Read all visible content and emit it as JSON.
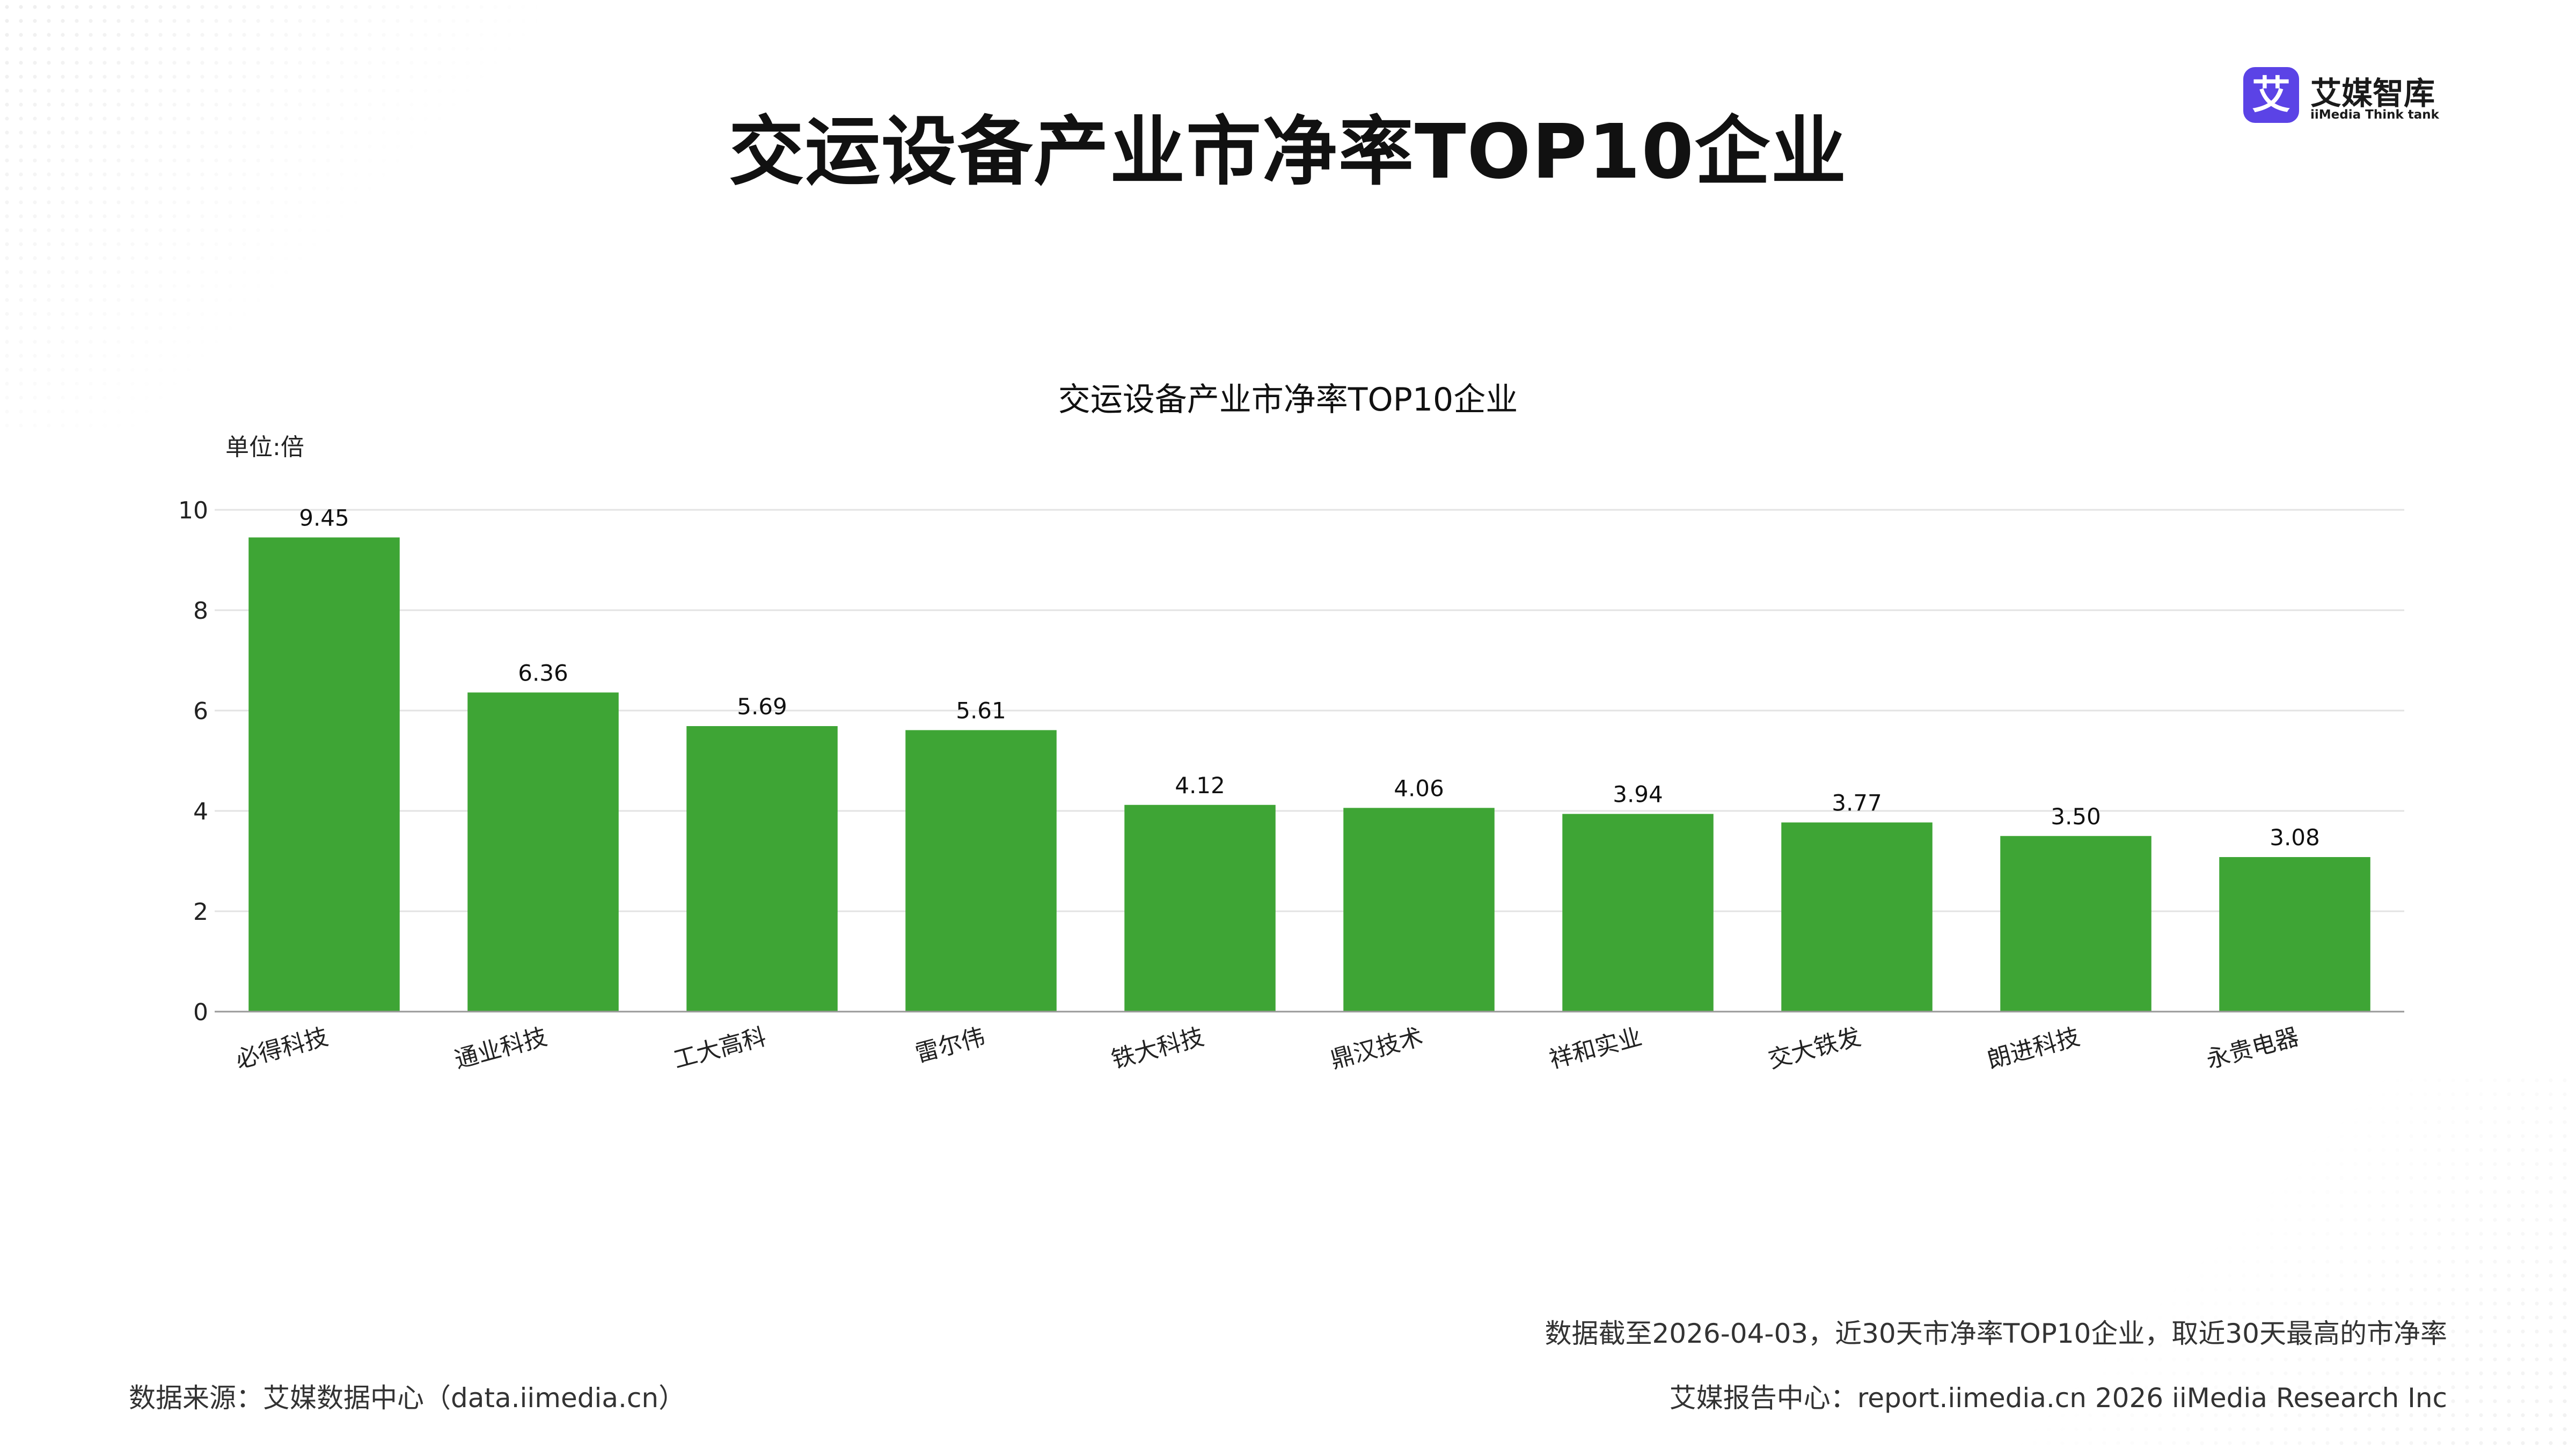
{
  "page": {
    "title": "交运设备产业市净率TOP10企业",
    "logo_mark": "艾",
    "logo_name": "艾媒智库",
    "logo_subtitle": "iiMedia Think tank",
    "footnote": "数据截至2026-04-03，近30天市净率TOP10企业，取近30天最高的市净率",
    "source": "数据来源：艾媒数据中心（data.iimedia.cn）",
    "report_center": "艾媒报告中心：report.iimedia.cn   2026 iiMedia Research Inc"
  },
  "colors": {
    "bar": "#3ea535",
    "grid": "#e3e3e3",
    "axis": "#999999",
    "brand": "#5b43e6"
  },
  "chart_data": {
    "type": "bar",
    "title": "交运设备产业市净率TOP10企业",
    "unit_label": "单位:倍",
    "categories": [
      "必得科技",
      "通业科技",
      "工大高科",
      "雷尔伟",
      "铁大科技",
      "鼎汉技术",
      "祥和实业",
      "交大铁发",
      "朗进科技",
      "永贵电器"
    ],
    "values": [
      9.45,
      6.36,
      5.69,
      5.61,
      4.12,
      4.06,
      3.94,
      3.77,
      3.5,
      3.08
    ],
    "value_labels": [
      "9.45",
      "6.36",
      "5.69",
      "5.61",
      "4.12",
      "4.06",
      "3.94",
      "3.77",
      "3.50",
      "3.08"
    ],
    "ylim": [
      0,
      10
    ],
    "yticks": [
      0,
      2,
      4,
      6,
      8,
      10
    ],
    "grid": true,
    "legend": "none"
  }
}
